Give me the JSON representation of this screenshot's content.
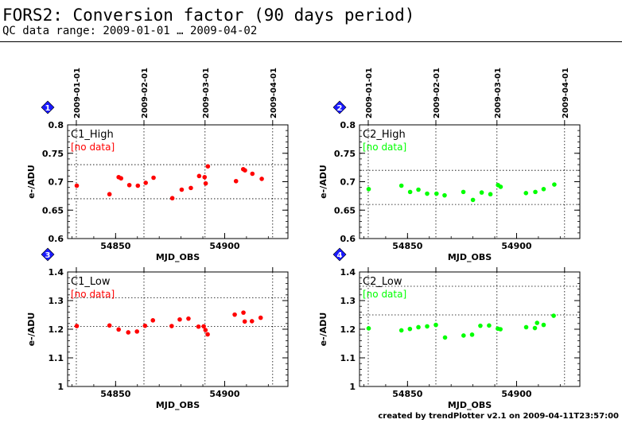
{
  "page": {
    "title": "FORS2: Conversion factor (90 days period)",
    "subtitle": "QC data range: 2009-01-01 … 2009-04-02",
    "footer": "created by trendPlotter v2.1 on 2009-04-11T23:57:00"
  },
  "chart_data": [
    {
      "type": "scatter",
      "panel_number": "1",
      "title": "C1_High",
      "note": "[no data]",
      "xlabel": "MJD_OBS",
      "ylabel": "e-/ADU",
      "color": "#ff0000",
      "xlim": [
        54828,
        54929
      ],
      "ylim": [
        0.6,
        0.8
      ],
      "yticks": [
        0.6,
        0.65,
        0.7,
        0.75,
        0.8
      ],
      "xticks": [
        54850,
        54900
      ],
      "date_ticks": [
        {
          "label": "2009-01-01",
          "mjd": 54832
        },
        {
          "label": "2009-02-01",
          "mjd": 54863
        },
        {
          "label": "2009-03-01",
          "mjd": 54891
        },
        {
          "label": "2009-04-01",
          "mjd": 54922
        }
      ],
      "ref_lines": [
        0.67,
        0.73
      ],
      "x": [
        54832.2,
        54847.2,
        54851.4,
        54852.5,
        54856.3,
        54860.2,
        54863.8,
        54867.4,
        54876.0,
        54880.3,
        54884.5,
        54888.3,
        54890.8,
        54891.3,
        54892.3,
        54905.2,
        54908.5,
        54909.3,
        54912.7,
        54917.0
      ],
      "y": [
        0.693,
        0.678,
        0.708,
        0.706,
        0.694,
        0.693,
        0.698,
        0.707,
        0.671,
        0.686,
        0.689,
        0.71,
        0.708,
        0.697,
        0.727,
        0.701,
        0.722,
        0.72,
        0.714,
        0.705
      ]
    },
    {
      "type": "scatter",
      "panel_number": "2",
      "title": "C2_High",
      "note": "[no data]",
      "xlabel": "MJD_OBS",
      "ylabel": "e-/ADU",
      "color": "#00ff00",
      "xlim": [
        54828,
        54929
      ],
      "ylim": [
        0.6,
        0.8
      ],
      "yticks": [
        0.6,
        0.65,
        0.7,
        0.75,
        0.8
      ],
      "xticks": [
        54850,
        54900
      ],
      "date_ticks": [
        {
          "label": "2009-01-01",
          "mjd": 54832
        },
        {
          "label": "2009-02-01",
          "mjd": 54863
        },
        {
          "label": "2009-03-01",
          "mjd": 54891
        },
        {
          "label": "2009-04-01",
          "mjd": 54922
        }
      ],
      "ref_lines": [
        0.66,
        0.72
      ],
      "x": [
        54832.2,
        54847.2,
        54851.2,
        54855.0,
        54859.0,
        54863.3,
        54867.0,
        54875.6,
        54880.0,
        54884.0,
        54888.0,
        54891.5,
        54892.7,
        54904.3,
        54908.6,
        54912.4,
        54917.3
      ],
      "y": [
        0.687,
        0.693,
        0.682,
        0.686,
        0.679,
        0.679,
        0.676,
        0.682,
        0.668,
        0.681,
        0.678,
        0.694,
        0.691,
        0.68,
        0.682,
        0.687,
        0.695
      ]
    },
    {
      "type": "scatter",
      "panel_number": "3",
      "title": "C1_Low",
      "note": "[no data]",
      "xlabel": "MJD_OBS",
      "ylabel": "e-/ADU",
      "color": "#ff0000",
      "xlim": [
        54828,
        54929
      ],
      "ylim": [
        1,
        1.4
      ],
      "yticks": [
        1,
        1.1,
        1.2,
        1.3,
        1.4
      ],
      "xticks": [
        54850,
        54900
      ],
      "date_ticks": [
        {
          "label": "2009-01-01",
          "mjd": 54832
        },
        {
          "label": "2009-02-01",
          "mjd": 54863
        },
        {
          "label": "2009-03-01",
          "mjd": 54891
        },
        {
          "label": "2009-04-01",
          "mjd": 54922
        }
      ],
      "ref_lines": [
        1.21,
        1.31
      ],
      "x": [
        54832.2,
        54847.2,
        54851.4,
        54855.8,
        54859.8,
        54863.5,
        54867.1,
        54875.7,
        54879.4,
        54883.4,
        54888.0,
        54890.4,
        54891.2,
        54892.2,
        54904.6,
        54908.6,
        54909.2,
        54912.5,
        54916.5
      ],
      "y": [
        1.211,
        1.213,
        1.199,
        1.189,
        1.192,
        1.212,
        1.231,
        1.211,
        1.234,
        1.237,
        1.209,
        1.21,
        1.197,
        1.182,
        1.251,
        1.258,
        1.227,
        1.228,
        1.24
      ]
    },
    {
      "type": "scatter",
      "panel_number": "4",
      "title": "C2_Low",
      "note": "[no data]",
      "xlabel": "MJD_OBS",
      "ylabel": "e-/ADU",
      "color": "#00ff00",
      "xlim": [
        54828,
        54929
      ],
      "ylim": [
        1,
        1.4
      ],
      "yticks": [
        1,
        1.1,
        1.2,
        1.3,
        1.4
      ],
      "xticks": [
        54850,
        54900
      ],
      "date_ticks": [
        {
          "label": "2009-01-01",
          "mjd": 54832
        },
        {
          "label": "2009-02-01",
          "mjd": 54863
        },
        {
          "label": "2009-03-01",
          "mjd": 54891
        },
        {
          "label": "2009-04-01",
          "mjd": 54922
        }
      ],
      "ref_lines": [
        1.25,
        1.35
      ],
      "x": [
        54832.2,
        54847.2,
        54851.1,
        54855.0,
        54859.0,
        54863.0,
        54867.2,
        54875.7,
        54879.6,
        54883.4,
        54887.4,
        54891.4,
        54892.6,
        54904.4,
        54908.4,
        54909.4,
        54912.4,
        54917.0
      ],
      "y": [
        1.203,
        1.196,
        1.201,
        1.207,
        1.21,
        1.215,
        1.171,
        1.178,
        1.181,
        1.212,
        1.213,
        1.202,
        1.2,
        1.207,
        1.204,
        1.222,
        1.215,
        1.247
      ]
    }
  ]
}
